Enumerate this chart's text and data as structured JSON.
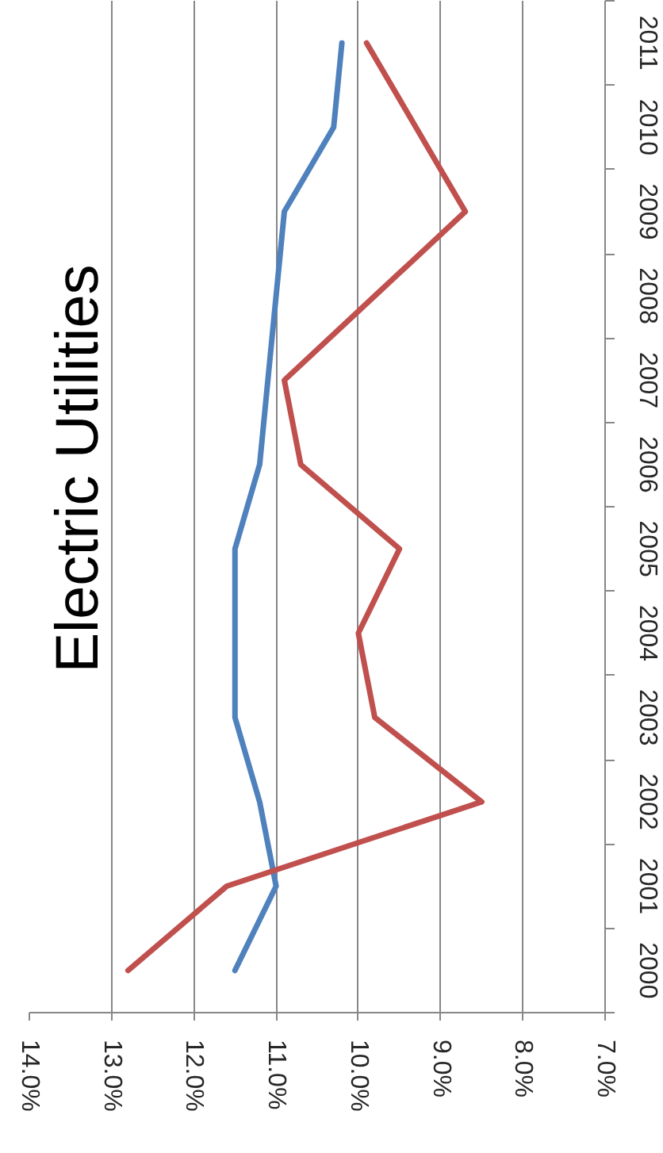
{
  "chart_data": {
    "type": "line",
    "title": "Electric Utilities",
    "orientation": "horizontal",
    "categories": [
      "2011",
      "2010",
      "2009",
      "2008",
      "2007",
      "2006",
      "2005",
      "2004",
      "2003",
      "2002",
      "2001",
      "2000"
    ],
    "series": [
      {
        "color": "#4f81bd",
        "values": [
          10.2,
          10.3,
          10.9,
          11.0,
          11.1,
          11.2,
          11.5,
          11.5,
          11.5,
          11.2,
          11.0,
          11.5
        ]
      },
      {
        "color": "#c0504d",
        "values": [
          9.9,
          9.3,
          8.7,
          9.8,
          10.9,
          10.7,
          9.5,
          10.0,
          9.8,
          8.5,
          11.6,
          12.8
        ]
      }
    ],
    "xlim": [
      14,
      7
    ],
    "xticks": [
      {
        "value": 14,
        "label": "14.0%"
      },
      {
        "value": 13,
        "label": "13.0%"
      },
      {
        "value": 12,
        "label": "12.0%"
      },
      {
        "value": 11,
        "label": "11.0%"
      },
      {
        "value": 10,
        "label": "10.0%"
      },
      {
        "value": 9,
        "label": "9.0%"
      },
      {
        "value": 8,
        "label": "8.0%"
      },
      {
        "value": 7,
        "label": "7.0%"
      }
    ],
    "grid": "x"
  }
}
